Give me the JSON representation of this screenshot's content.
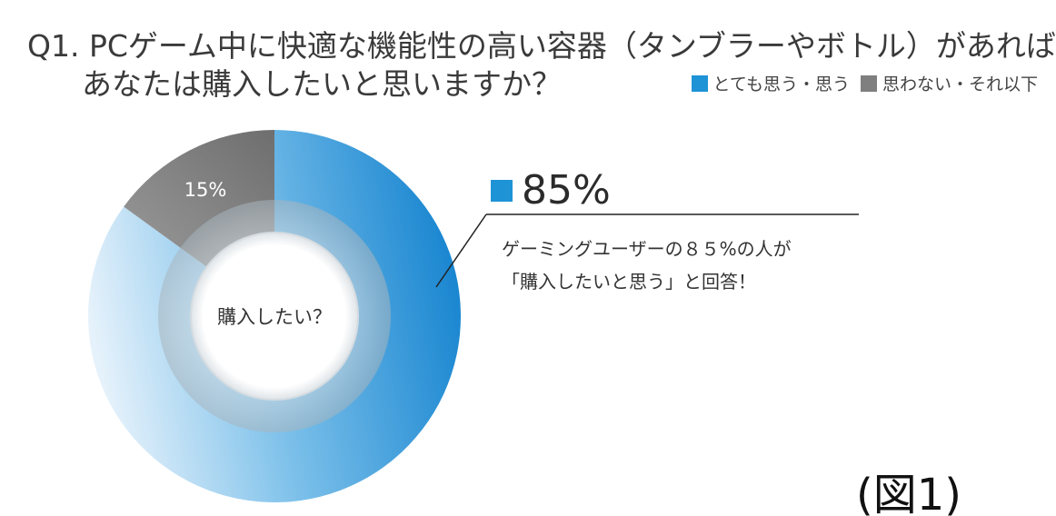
{
  "question": {
    "line1": "Q1. PCゲーム中に快適な機能性の高い容器（タンブラーやボトル）があれば、",
    "line2": "あなたは購入したいと思いますか？"
  },
  "legend": {
    "items": [
      {
        "label": "とても思う・思う",
        "color": "#1e93d6"
      },
      {
        "label": "思わない・それ以下",
        "color": "#7f7f7f"
      }
    ]
  },
  "chart_data": {
    "type": "pie",
    "variant": "donut",
    "center_label": "購入したい？",
    "slices": [
      {
        "label": "とても思う・思う",
        "value": 85,
        "color": "#1e93d6"
      },
      {
        "label": "思わない・それ以下",
        "value": 15,
        "color": "#7f7f7f",
        "data_label": "15%"
      }
    ],
    "callout": {
      "value_label": "85%",
      "text_line1": "ゲーミングユーザーの８５%の人が",
      "text_line2": "「購入したいと思う」と回答！"
    }
  },
  "figure_label": "(図1)"
}
